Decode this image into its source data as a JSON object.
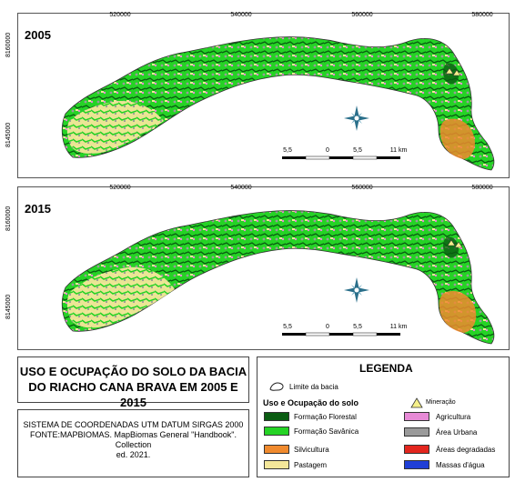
{
  "maps": [
    {
      "year": "2005"
    },
    {
      "year": "2015"
    }
  ],
  "axis": {
    "x_ticks": [
      "520000",
      "540000",
      "560000",
      "580000"
    ],
    "y_ticks": [
      "8160000",
      "8145000"
    ]
  },
  "scale_bar": {
    "labels": [
      "5,5",
      "0",
      "5,5",
      "11 km"
    ]
  },
  "compass": {
    "n": "N",
    "s": "S",
    "e": "E",
    "w": "W"
  },
  "title_lines": [
    "USO E OCUPAÇÃO DO SOLO DA BACIA",
    "DO RIACHO CANA BRAVA EM 2005 E",
    "2015"
  ],
  "source_lines": [
    "SISTEMA DE COORDENADAS UTM DATUM SIRGAS 2000",
    "FONTE:MAPBIOMAS. MapBiomas General \"Handbook\".",
    "Collection",
    "ed. 2021."
  ],
  "legend": {
    "title": "LEGENDA",
    "boundary": "Limite da bacia",
    "section": "Uso e Ocupação do solo",
    "mining": "Mineração",
    "left_items": [
      {
        "label": "Formação Florestal",
        "color": "#0a5c12"
      },
      {
        "label": "Formação Savânica",
        "color": "#25d325"
      },
      {
        "label": "Silvicultura",
        "color": "#f08a2e"
      },
      {
        "label": "Pastagem",
        "color": "#f4e79a"
      }
    ],
    "right_items": [
      {
        "label": "Agricultura",
        "color": "#e78ad6"
      },
      {
        "label": "Área Urbana",
        "color": "#9a9a9a"
      },
      {
        "label": "Áreas degradadas",
        "color": "#e3261e"
      },
      {
        "label": "Massas d'água",
        "color": "#1f3fd6"
      }
    ]
  }
}
